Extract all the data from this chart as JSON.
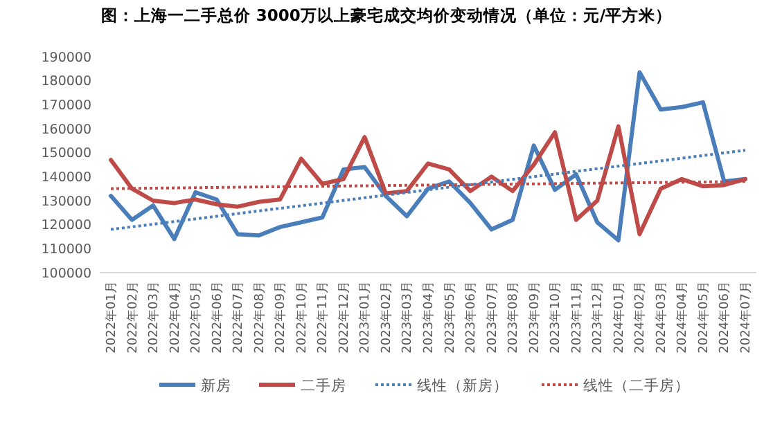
{
  "chart_data": {
    "type": "line",
    "title": "图：上海一二手总价 3000万以上豪宅成交均价变动情况（单位：元/平方米）",
    "categories": [
      "2022年01月",
      "2022年02月",
      "2022年03月",
      "2022年04月",
      "2022年05月",
      "2022年06月",
      "2022年07月",
      "2022年08月",
      "2022年09月",
      "2022年10月",
      "2022年11月",
      "2022年12月",
      "2023年01月",
      "2023年02月",
      "2023年03月",
      "2023年04月",
      "2023年05月",
      "2023年06月",
      "2023年07月",
      "2023年08月",
      "2023年09月",
      "2023年10月",
      "2023年11月",
      "2023年12月",
      "2024年01月",
      "2024年02月",
      "2024年03月",
      "2024年04月",
      "2024年05月",
      "2024年06月",
      "2024年07月"
    ],
    "series": [
      {
        "name": "新房",
        "color": "#4a7ebb",
        "line_style": "solid",
        "values": [
          132000,
          122000,
          128000,
          114000,
          133500,
          130500,
          116000,
          115500,
          119000,
          121000,
          123000,
          143000,
          144000,
          132000,
          123500,
          135000,
          138000,
          129000,
          118000,
          122000,
          153000,
          134500,
          141000,
          121000,
          113500,
          183500,
          168000,
          169000,
          171000,
          138000,
          139000
        ]
      },
      {
        "name": "二手房",
        "color": "#be4b48",
        "line_style": "solid",
        "values": [
          147000,
          135000,
          130000,
          129000,
          130500,
          128500,
          127500,
          129500,
          130500,
          147500,
          137000,
          139000,
          156500,
          133000,
          134000,
          145500,
          143000,
          134000,
          140000,
          134000,
          145000,
          158500,
          122000,
          130000,
          161000,
          116000,
          135000,
          139000,
          136000,
          136500,
          139000
        ]
      },
      {
        "name": "线性（新房）",
        "color": "#4a7ebb",
        "line_style": "dotted",
        "x": [
          "2022年01月",
          "2024年07月"
        ],
        "values": [
          118000,
          151000
        ]
      },
      {
        "name": "线性（二手房）",
        "color": "#be4b48",
        "line_style": "dotted",
        "x": [
          "2022年01月",
          "2024年07月"
        ],
        "values": [
          135000,
          138000
        ]
      }
    ],
    "ylim": [
      100000,
      190000
    ],
    "yticks": [
      100000,
      110000,
      120000,
      130000,
      140000,
      150000,
      160000,
      170000,
      180000,
      190000
    ],
    "grid": false,
    "legend": "bottom"
  }
}
